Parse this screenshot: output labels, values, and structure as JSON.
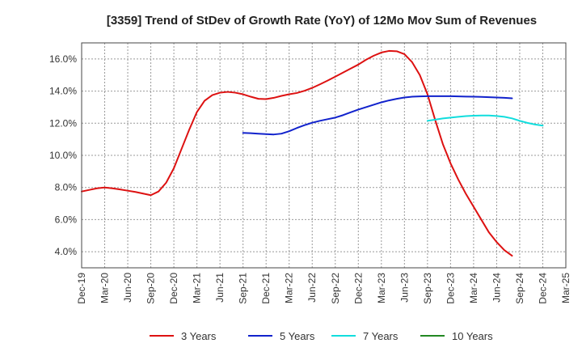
{
  "chart_data": {
    "type": "line",
    "title": "[3359]  Trend of StDev of Growth Rate (YoY) of 12Mo Mov Sum of Revenues",
    "xlabel": "",
    "ylabel": "",
    "ylim": [
      3.0,
      17.0
    ],
    "y_ticks": [
      4.0,
      6.0,
      8.0,
      10.0,
      12.0,
      14.0,
      16.0
    ],
    "y_tick_labels": [
      "4.0%",
      "6.0%",
      "8.0%",
      "10.0%",
      "12.0%",
      "14.0%",
      "16.0%"
    ],
    "x_tick_labels": [
      "Dec-19",
      "Mar-20",
      "Jun-20",
      "Sep-20",
      "Dec-20",
      "Mar-21",
      "Jun-21",
      "Sep-21",
      "Dec-21",
      "Mar-22",
      "Jun-22",
      "Sep-22",
      "Dec-22",
      "Mar-23",
      "Jun-23",
      "Sep-23",
      "Dec-23",
      "Mar-24",
      "Jun-24",
      "Sep-24",
      "Dec-24",
      "Mar-25"
    ],
    "x_range_months": [
      0,
      63
    ],
    "grid": true,
    "legend_position": "bottom",
    "series": [
      {
        "name": "3 Years",
        "color": "#dd1111",
        "points": [
          [
            0,
            7.75
          ],
          [
            1,
            7.85
          ],
          [
            2,
            7.95
          ],
          [
            3,
            8.0
          ],
          [
            4,
            7.95
          ],
          [
            5,
            7.88
          ],
          [
            6,
            7.8
          ],
          [
            7,
            7.72
          ],
          [
            8,
            7.62
          ],
          [
            9,
            7.52
          ],
          [
            10,
            7.75
          ],
          [
            11,
            8.3
          ],
          [
            12,
            9.2
          ],
          [
            13,
            10.4
          ],
          [
            14,
            11.6
          ],
          [
            15,
            12.7
          ],
          [
            16,
            13.4
          ],
          [
            17,
            13.75
          ],
          [
            18,
            13.9
          ],
          [
            19,
            13.95
          ],
          [
            20,
            13.9
          ],
          [
            21,
            13.8
          ],
          [
            22,
            13.65
          ],
          [
            23,
            13.52
          ],
          [
            24,
            13.5
          ],
          [
            25,
            13.58
          ],
          [
            26,
            13.7
          ],
          [
            27,
            13.8
          ],
          [
            28,
            13.88
          ],
          [
            29,
            14.02
          ],
          [
            30,
            14.2
          ],
          [
            31,
            14.42
          ],
          [
            32,
            14.65
          ],
          [
            33,
            14.9
          ],
          [
            34,
            15.15
          ],
          [
            35,
            15.4
          ],
          [
            36,
            15.65
          ],
          [
            37,
            15.95
          ],
          [
            38,
            16.2
          ],
          [
            39,
            16.4
          ],
          [
            40,
            16.5
          ],
          [
            41,
            16.48
          ],
          [
            42,
            16.3
          ],
          [
            43,
            15.8
          ],
          [
            44,
            15.0
          ],
          [
            45,
            13.8
          ],
          [
            46,
            12.2
          ],
          [
            47,
            10.7
          ],
          [
            48,
            9.5
          ],
          [
            49,
            8.5
          ],
          [
            50,
            7.6
          ],
          [
            51,
            6.8
          ],
          [
            52,
            6.0
          ],
          [
            53,
            5.2
          ],
          [
            54,
            4.6
          ],
          [
            55,
            4.1
          ],
          [
            56,
            3.75
          ]
        ]
      },
      {
        "name": "5 Years",
        "color": "#1122cc",
        "points": [
          [
            21,
            11.4
          ],
          [
            22,
            11.38
          ],
          [
            23,
            11.35
          ],
          [
            24,
            11.32
          ],
          [
            25,
            11.3
          ],
          [
            26,
            11.35
          ],
          [
            27,
            11.5
          ],
          [
            28,
            11.7
          ],
          [
            29,
            11.88
          ],
          [
            30,
            12.03
          ],
          [
            31,
            12.15
          ],
          [
            32,
            12.25
          ],
          [
            33,
            12.35
          ],
          [
            34,
            12.5
          ],
          [
            35,
            12.68
          ],
          [
            36,
            12.85
          ],
          [
            37,
            13.0
          ],
          [
            38,
            13.15
          ],
          [
            39,
            13.3
          ],
          [
            40,
            13.42
          ],
          [
            41,
            13.52
          ],
          [
            42,
            13.6
          ],
          [
            43,
            13.65
          ],
          [
            44,
            13.67
          ],
          [
            45,
            13.68
          ],
          [
            46,
            13.68
          ],
          [
            47,
            13.68
          ],
          [
            48,
            13.68
          ],
          [
            49,
            13.67
          ],
          [
            50,
            13.66
          ],
          [
            51,
            13.65
          ],
          [
            52,
            13.64
          ],
          [
            53,
            13.62
          ],
          [
            54,
            13.6
          ],
          [
            55,
            13.58
          ],
          [
            56,
            13.55
          ]
        ]
      },
      {
        "name": "7 Years",
        "color": "#11dddd",
        "points": [
          [
            45,
            12.15
          ],
          [
            46,
            12.22
          ],
          [
            47,
            12.3
          ],
          [
            48,
            12.35
          ],
          [
            49,
            12.4
          ],
          [
            50,
            12.44
          ],
          [
            51,
            12.47
          ],
          [
            52,
            12.48
          ],
          [
            53,
            12.48
          ],
          [
            54,
            12.45
          ],
          [
            55,
            12.4
          ],
          [
            56,
            12.3
          ],
          [
            57,
            12.15
          ],
          [
            58,
            12.02
          ],
          [
            59,
            11.92
          ],
          [
            60,
            11.85
          ]
        ]
      },
      {
        "name": "10 Years",
        "color": "#228822",
        "points": []
      }
    ]
  }
}
